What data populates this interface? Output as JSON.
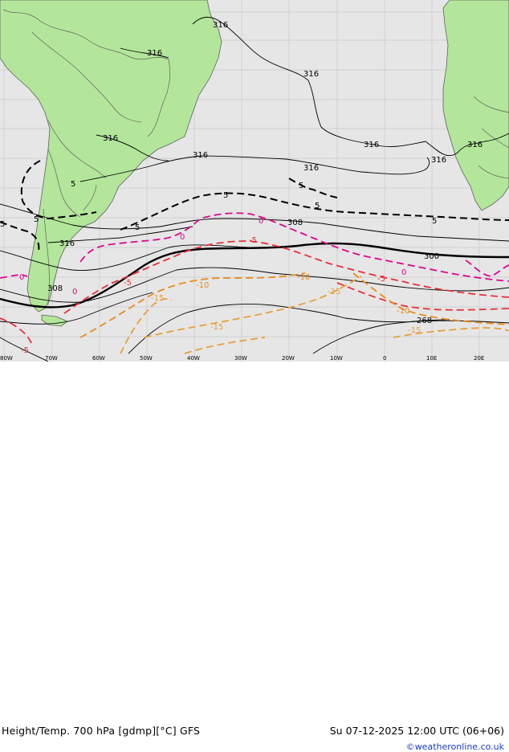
{
  "map": {
    "title": "Height/Temp. 700 hPa [gdmp][°C] GFS",
    "timestamp": "Su 07-12-2025 12:00 UTC (06+06)",
    "credit": "©weatheronline.co.uk",
    "colors": {
      "ocean": "#e6e6e6",
      "land": "#b3e69a",
      "grid": "#c8c8c8",
      "height_contour": "#000000",
      "temp_0": "#dc0a8c",
      "temp_neg5": "#e6323c",
      "temp_neg10": "#e88c1e",
      "temp_neg15": "#e6a03c",
      "temp_pos5": "#000000"
    },
    "lon_ticks": [
      "80W",
      "70W",
      "60W",
      "50W",
      "40W",
      "30W",
      "20W",
      "10W",
      "0",
      "10E",
      "20E"
    ],
    "height_labels": [
      "316",
      "316",
      "316",
      "316",
      "316",
      "316",
      "316",
      "316",
      "316",
      "308",
      "300",
      "268"
    ],
    "temp_labels": [
      "5",
      "5",
      "5",
      "5",
      "5",
      "5",
      "5",
      "0",
      "0",
      "0",
      "0",
      "0",
      "-5",
      "-5",
      "-5",
      "-5",
      "-10",
      "-10",
      "-10",
      "-15",
      "-15",
      "-15",
      "-15"
    ]
  }
}
